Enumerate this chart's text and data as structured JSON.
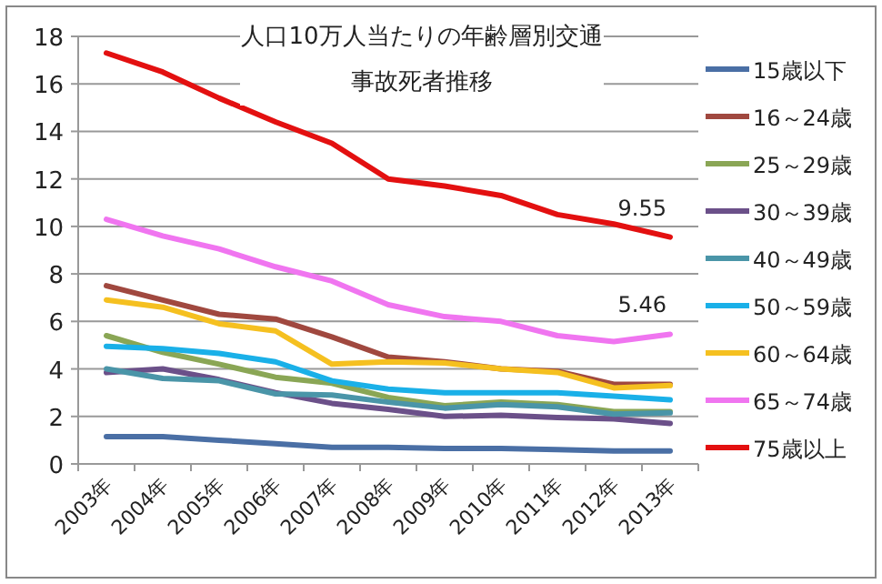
{
  "chart_data": {
    "type": "line",
    "title": "人口10万人当たりの年齢層別交通事故死者推移",
    "categories": [
      "2003年",
      "2004年",
      "2005年",
      "2006年",
      "2007年",
      "2008年",
      "2009年",
      "2010年",
      "2011年",
      "2012年",
      "2013年"
    ],
    "ylim": [
      0,
      18
    ],
    "yticks": [
      0,
      2,
      4,
      6,
      8,
      10,
      12,
      14,
      16,
      18
    ],
    "grid": "y",
    "legend": "right",
    "marker": "none",
    "line_style": "solid",
    "series": [
      {
        "name": "15歳以下",
        "color": "#4a6fa5",
        "values": [
          1.15,
          1.15,
          1.0,
          0.85,
          0.7,
          0.7,
          0.65,
          0.65,
          0.6,
          0.55,
          0.55
        ]
      },
      {
        "name": "16～24歳",
        "color": "#a0483f",
        "values": [
          7.5,
          6.9,
          6.3,
          6.1,
          5.35,
          4.5,
          4.3,
          4.0,
          3.9,
          3.35,
          3.35
        ]
      },
      {
        "name": "25～29歳",
        "color": "#8aa655",
        "values": [
          5.4,
          4.7,
          4.2,
          3.65,
          3.4,
          2.8,
          2.45,
          2.6,
          2.5,
          2.2,
          2.2
        ]
      },
      {
        "name": "30～39歳",
        "color": "#6b5089",
        "values": [
          3.85,
          4.0,
          3.55,
          3.0,
          2.55,
          2.3,
          2.0,
          2.05,
          1.95,
          1.9,
          1.7
        ]
      },
      {
        "name": "40～49歳",
        "color": "#4a95a8",
        "values": [
          4.0,
          3.6,
          3.5,
          2.95,
          2.9,
          2.6,
          2.35,
          2.5,
          2.4,
          2.1,
          2.15
        ]
      },
      {
        "name": "50～59歳",
        "color": "#1ab0e8",
        "values": [
          4.95,
          4.85,
          4.65,
          4.3,
          3.5,
          3.15,
          3.0,
          3.0,
          3.0,
          2.85,
          2.7
        ]
      },
      {
        "name": "60～64歳",
        "color": "#f5c020",
        "values": [
          6.9,
          6.6,
          5.9,
          5.6,
          4.2,
          4.3,
          4.25,
          4.0,
          3.85,
          3.2,
          3.3
        ]
      },
      {
        "name": "65～74歳",
        "color": "#f075f0",
        "values": [
          10.3,
          9.6,
          9.05,
          8.3,
          7.7,
          6.7,
          6.2,
          6.0,
          5.4,
          5.15,
          5.46
        ],
        "value_labels": [
          null,
          null,
          null,
          null,
          null,
          null,
          null,
          null,
          null,
          null,
          "5.46"
        ]
      },
      {
        "name": "75歳以上",
        "color": "#e31010",
        "values": [
          17.3,
          16.5,
          15.4,
          14.4,
          13.5,
          12.0,
          11.7,
          11.3,
          10.5,
          10.1,
          9.55
        ],
        "value_labels": [
          null,
          null,
          null,
          null,
          null,
          null,
          null,
          null,
          null,
          null,
          "9.55"
        ]
      }
    ]
  }
}
